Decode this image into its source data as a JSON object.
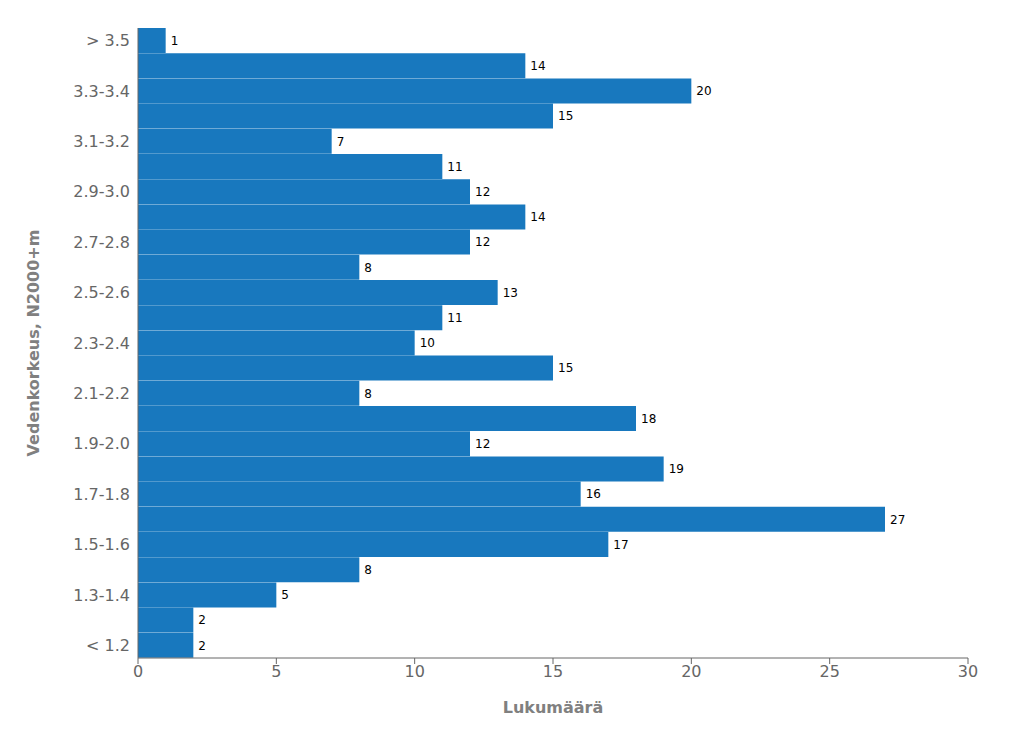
{
  "chart_data": {
    "type": "bar",
    "orientation": "horizontal",
    "xlabel": "Lukumäärä",
    "ylabel": "Vedenkorkeus, N2000+m",
    "categories": [
      "> 3.5",
      null,
      "3.3-3.4",
      null,
      "3.1-3.2",
      null,
      "2.9-3.0",
      null,
      "2.7-2.8",
      null,
      "2.5-2.6",
      null,
      "2.3-2.4",
      null,
      "2.1-2.2",
      null,
      "1.9-2.0",
      null,
      "1.7-1.8",
      null,
      "1.5-1.6",
      null,
      "1.3-1.4",
      null,
      "< 1.2"
    ],
    "values": [
      1,
      14,
      20,
      15,
      7,
      11,
      12,
      14,
      12,
      8,
      13,
      11,
      10,
      15,
      8,
      18,
      12,
      19,
      16,
      27,
      17,
      8,
      5,
      2,
      2
    ],
    "color": "#1878be",
    "xlim": [
      0,
      30
    ],
    "xticks": [
      0,
      5,
      10,
      15,
      20,
      25,
      30
    ],
    "data_labels": true,
    "grid": false
  }
}
